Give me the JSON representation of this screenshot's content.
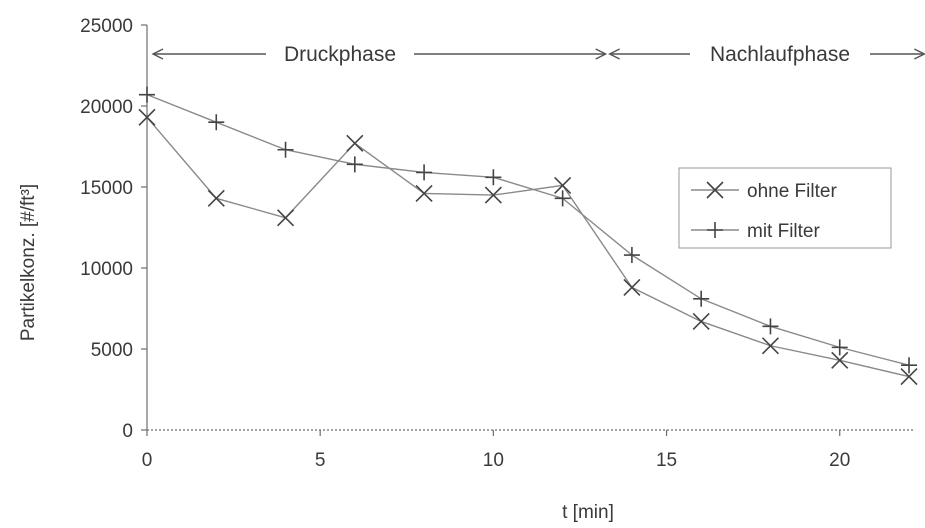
{
  "chart_data": {
    "type": "line",
    "xlabel": "t [min]",
    "ylabel": "Partikelkonz. [#/ft³]",
    "xlim": [
      0,
      22
    ],
    "ylim": [
      0,
      25000
    ],
    "xticks": [
      0,
      5,
      10,
      15,
      20
    ],
    "yticks": [
      0,
      5000,
      10000,
      15000,
      20000,
      25000
    ],
    "grid": false,
    "legend_position": "right",
    "series": [
      {
        "name": "ohne Filter",
        "marker": "x",
        "x": [
          0,
          2,
          4,
          6,
          8,
          10,
          12,
          14,
          16,
          18,
          20,
          22
        ],
        "y": [
          19300,
          14300,
          13100,
          17700,
          14600,
          14500,
          15100,
          8800,
          6700,
          5200,
          4300,
          3300
        ]
      },
      {
        "name": "mit Filter",
        "marker": "plus",
        "x": [
          0,
          2,
          4,
          6,
          8,
          10,
          12,
          14,
          16,
          18,
          20,
          22
        ],
        "y": [
          20700,
          19000,
          17300,
          16400,
          15900,
          15600,
          14300,
          10800,
          8100,
          6400,
          5100,
          4000
        ]
      }
    ],
    "phases": [
      {
        "label": "Druckphase",
        "x_start": 0,
        "x_end": 13.3
      },
      {
        "label": "Nachlaufphase",
        "x_start": 13.3,
        "x_end": 22.5
      }
    ]
  }
}
